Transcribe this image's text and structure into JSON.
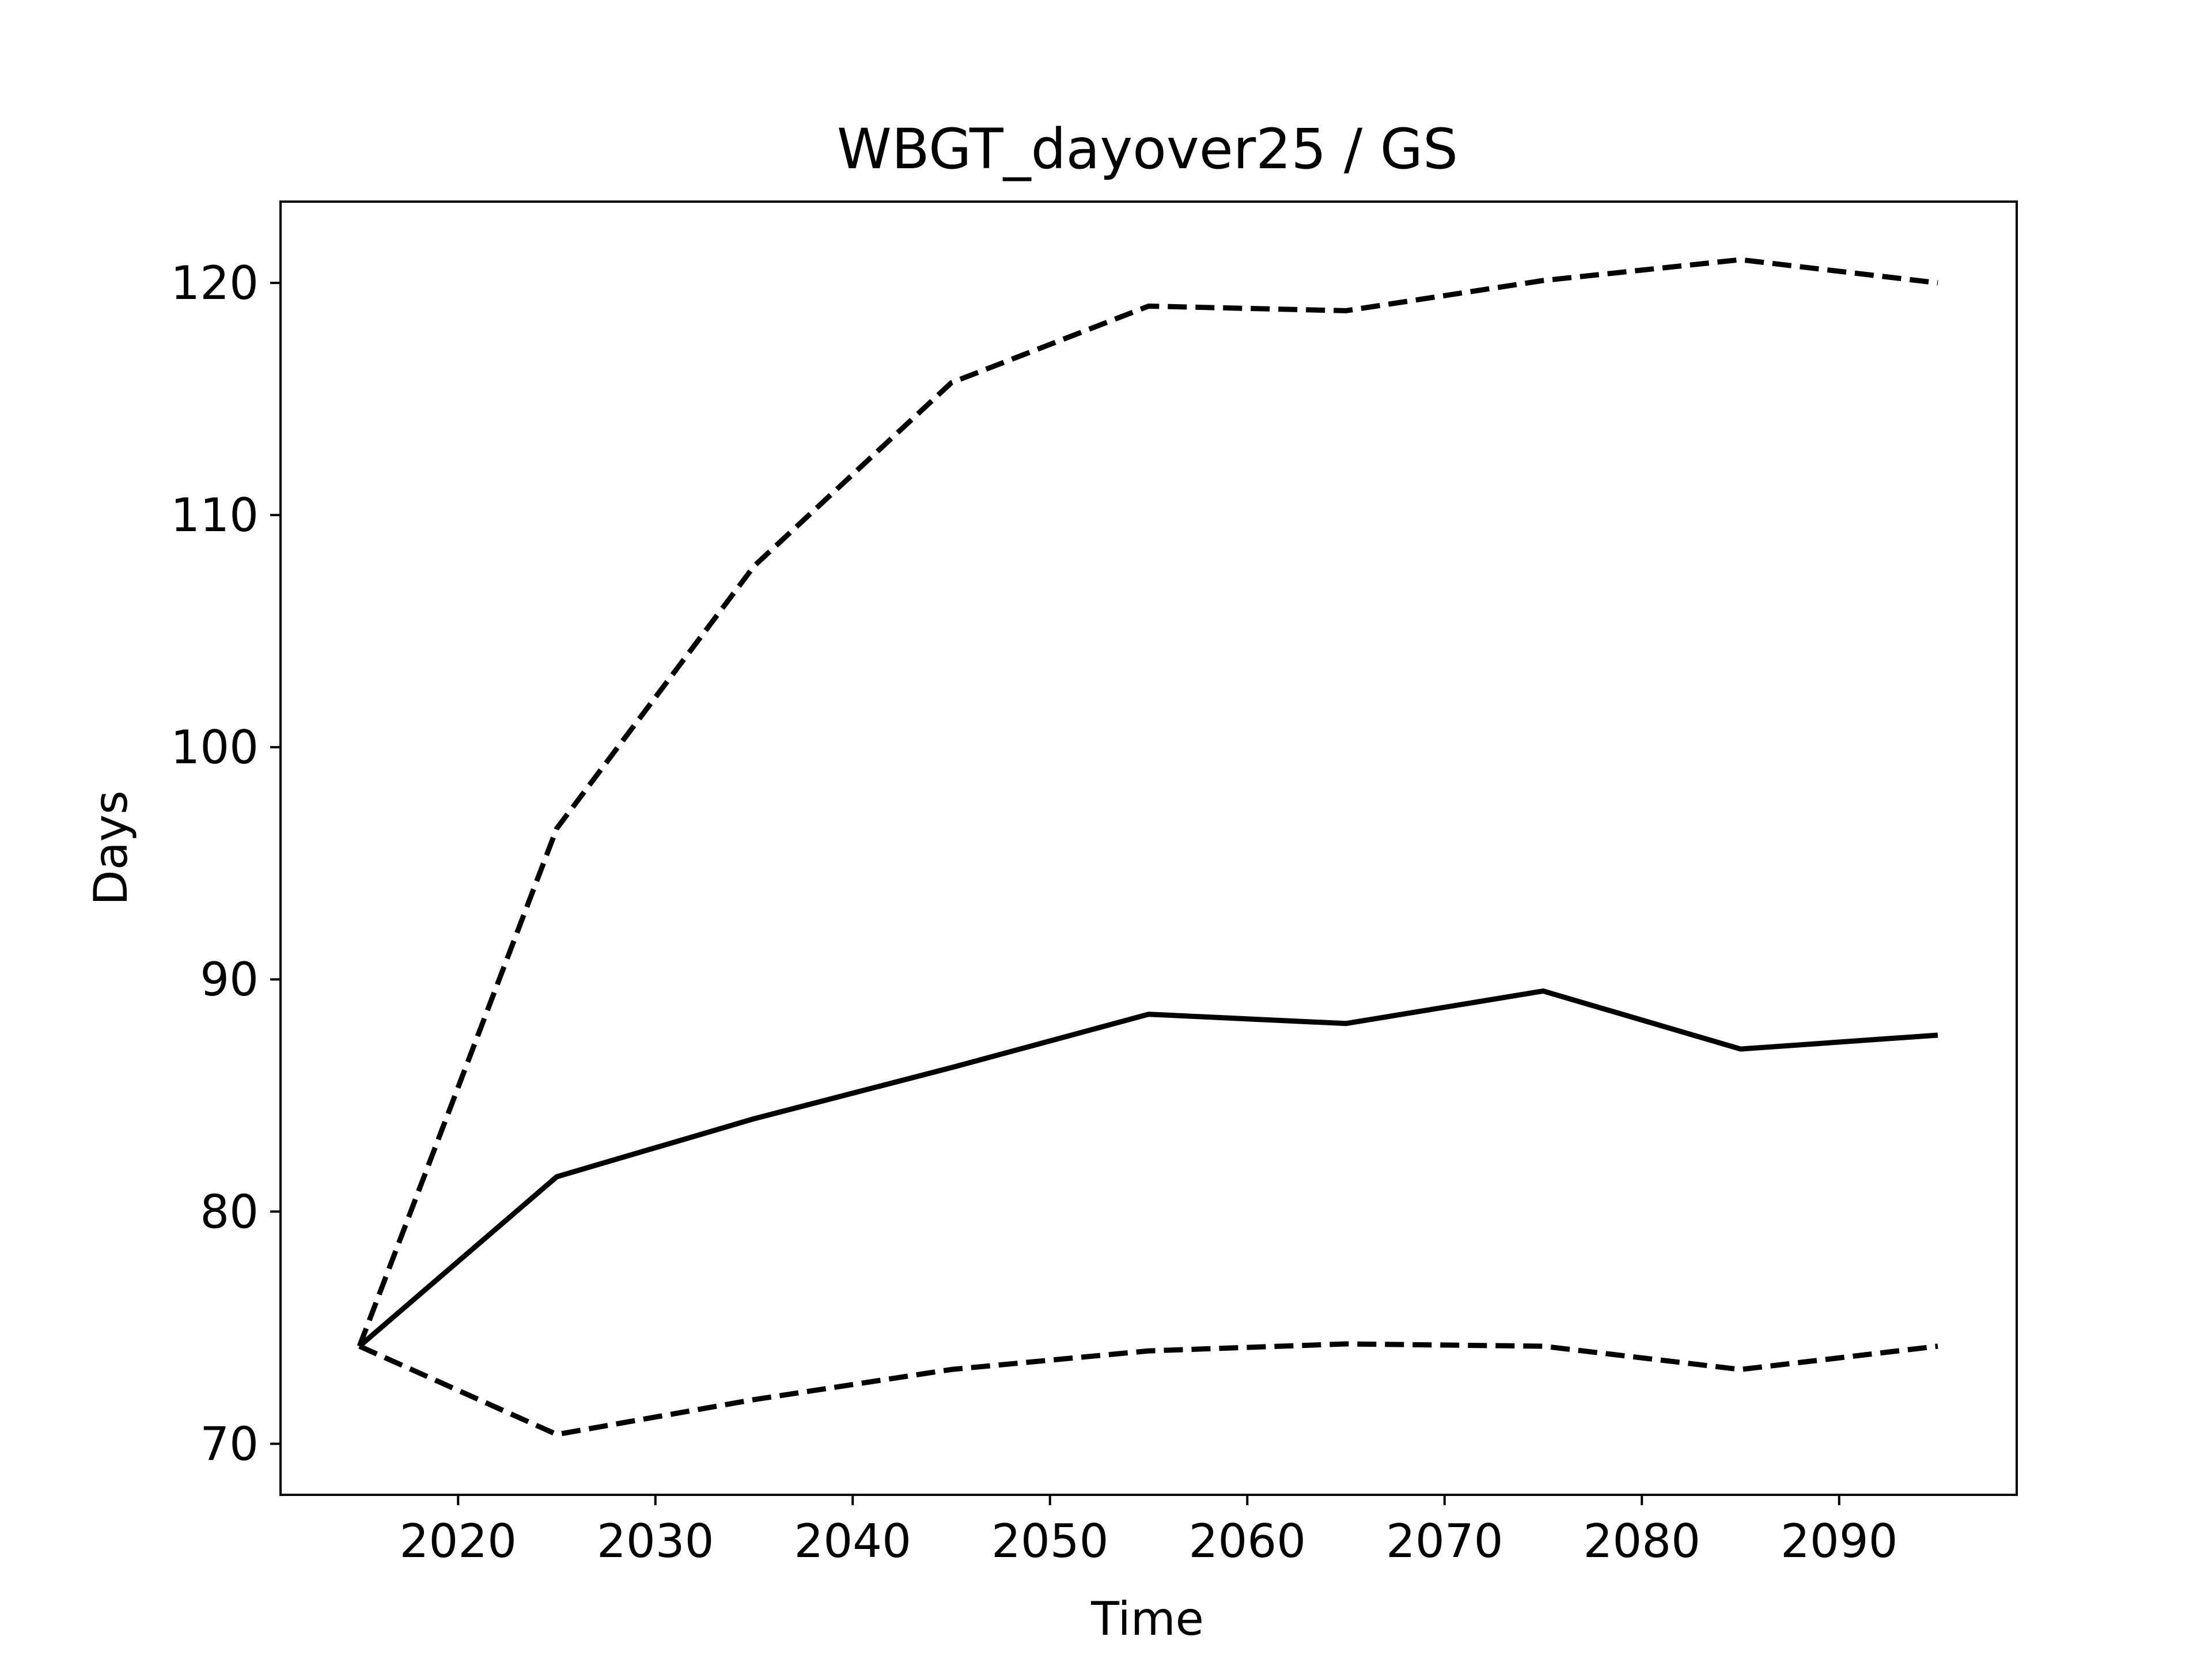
{
  "chart_data": {
    "type": "line",
    "title": "WBGT_dayover25 / GS",
    "xlabel": "Time",
    "ylabel": "Days",
    "xlim": [
      2011,
      2099
    ],
    "ylim": [
      67.8,
      123.5
    ],
    "grid": false,
    "xticks": [
      2020,
      2030,
      2040,
      2050,
      2060,
      2070,
      2080,
      2090
    ],
    "yticks": [
      70,
      80,
      90,
      100,
      110,
      120
    ],
    "x": [
      2015,
      2025,
      2035,
      2045,
      2055,
      2065,
      2075,
      2085,
      2095
    ],
    "series": [
      {
        "style": "solid",
        "color": "#000000",
        "values": [
          74.2,
          81.5,
          84.0,
          86.2,
          88.5,
          88.1,
          89.5,
          87.0,
          87.6
        ]
      },
      {
        "style": "dashed",
        "color": "#000000",
        "values": [
          74.2,
          96.5,
          107.8,
          115.7,
          119.0,
          118.8,
          120.1,
          121.0,
          120.0
        ]
      },
      {
        "style": "dashed",
        "color": "#000000",
        "values": [
          74.2,
          70.4,
          71.9,
          73.2,
          74.0,
          74.3,
          74.2,
          73.2,
          74.2
        ]
      }
    ]
  }
}
